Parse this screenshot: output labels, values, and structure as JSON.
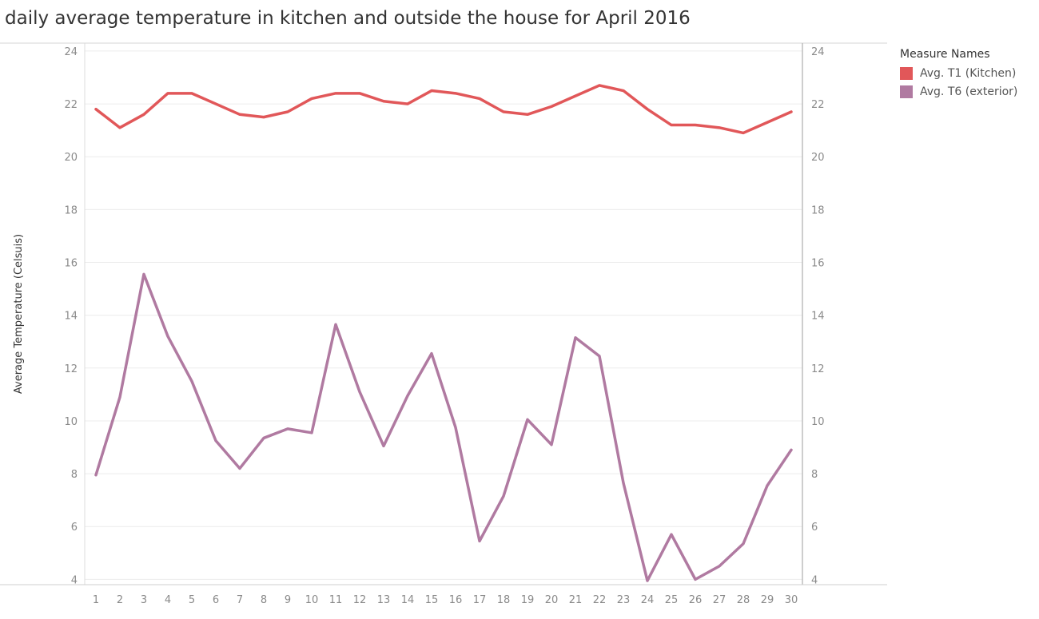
{
  "title": "daily average temperature in kitchen and outside the house for April 2016",
  "legend": {
    "title": "Measure Names",
    "items": [
      {
        "label": "Avg. T1 (Kitchen)",
        "color": "#e15759"
      },
      {
        "label": "Avg. T6 (exterior)",
        "color": "#b07aa1"
      }
    ]
  },
  "chart_data": {
    "type": "line",
    "title": "daily average temperature in kitchen and outside the house for April 2016",
    "xlabel": "",
    "ylabel": "Average Temperature (Celsuis)",
    "x": [
      1,
      2,
      3,
      4,
      5,
      6,
      7,
      8,
      9,
      10,
      11,
      12,
      13,
      14,
      15,
      16,
      17,
      18,
      19,
      20,
      21,
      22,
      23,
      24,
      25,
      26,
      27,
      28,
      29,
      30
    ],
    "ylim": [
      3.8,
      24.3
    ],
    "yticks": [
      4,
      6,
      8,
      10,
      12,
      14,
      16,
      18,
      20,
      22,
      24
    ],
    "grid": "horizontal",
    "legend_position": "right",
    "series": [
      {
        "name": "Avg. T1 (Kitchen)",
        "color": "#e15759",
        "values": [
          21.8,
          21.1,
          21.6,
          22.4,
          22.4,
          22.0,
          21.6,
          21.5,
          21.7,
          22.2,
          22.4,
          22.4,
          22.1,
          22.0,
          22.5,
          22.4,
          22.2,
          21.7,
          21.6,
          21.9,
          22.3,
          22.7,
          22.5,
          21.8,
          21.2,
          21.2,
          21.1,
          20.9,
          21.3,
          21.7
        ]
      },
      {
        "name": "Avg. T6 (exterior)",
        "color": "#b07aa1",
        "values": [
          7.95,
          10.9,
          15.55,
          13.2,
          11.5,
          9.25,
          8.2,
          9.35,
          9.7,
          9.55,
          13.65,
          11.1,
          9.05,
          10.95,
          12.55,
          9.75,
          5.45,
          7.15,
          10.05,
          9.1,
          13.15,
          12.45,
          7.65,
          3.95,
          5.7,
          4.0,
          4.5,
          5.35,
          7.55,
          8.9
        ]
      }
    ]
  }
}
